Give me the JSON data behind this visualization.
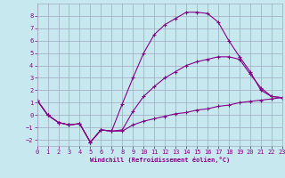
{
  "bg_color": "#c8e8f0",
  "grid_color": "#a0a8c0",
  "line_color": "#880088",
  "marker": "+",
  "xlim": [
    0,
    23
  ],
  "ylim": [
    -2.5,
    9.0
  ],
  "yticks": [
    -2,
    -1,
    0,
    1,
    2,
    3,
    4,
    5,
    6,
    7,
    8
  ],
  "xticks": [
    0,
    1,
    2,
    3,
    4,
    5,
    6,
    7,
    8,
    9,
    10,
    11,
    12,
    13,
    14,
    15,
    16,
    17,
    18,
    19,
    20,
    21,
    22,
    23
  ],
  "xlabel": "Windchill (Refroidissement éolien,°C)",
  "curve1_x": [
    0,
    1,
    2,
    3,
    4,
    5,
    6,
    7,
    8,
    9,
    10,
    11,
    12,
    13,
    14,
    15,
    16,
    17,
    18,
    19,
    20,
    21,
    22,
    23
  ],
  "curve1_y": [
    1.2,
    0.0,
    -0.6,
    -0.8,
    -0.7,
    -2.2,
    -1.2,
    -1.3,
    -1.3,
    -0.8,
    -0.5,
    -0.3,
    -0.1,
    0.1,
    0.2,
    0.4,
    0.5,
    0.7,
    0.8,
    1.0,
    1.1,
    1.2,
    1.3,
    1.4
  ],
  "curve2_x": [
    0,
    1,
    2,
    3,
    4,
    5,
    6,
    7,
    8,
    9,
    10,
    11,
    12,
    13,
    14,
    15,
    16,
    17,
    18,
    19,
    20,
    21,
    22,
    23
  ],
  "curve2_y": [
    1.2,
    0.0,
    -0.6,
    -0.8,
    -0.7,
    -2.2,
    -1.2,
    -1.3,
    0.9,
    3.0,
    5.0,
    6.5,
    7.3,
    7.8,
    8.3,
    8.3,
    8.2,
    7.5,
    6.0,
    4.7,
    3.5,
    2.0,
    1.5,
    1.4
  ],
  "curve3_x": [
    0,
    1,
    2,
    3,
    4,
    5,
    6,
    7,
    8,
    9,
    10,
    11,
    12,
    13,
    14,
    15,
    16,
    17,
    18,
    19,
    20,
    21,
    22,
    23
  ],
  "curve3_y": [
    1.2,
    0.0,
    -0.6,
    -0.8,
    -0.7,
    -2.2,
    -1.2,
    -1.3,
    -1.2,
    0.3,
    1.5,
    2.3,
    3.0,
    3.5,
    4.0,
    4.3,
    4.5,
    4.7,
    4.7,
    4.5,
    3.3,
    2.2,
    1.5,
    1.4
  ]
}
